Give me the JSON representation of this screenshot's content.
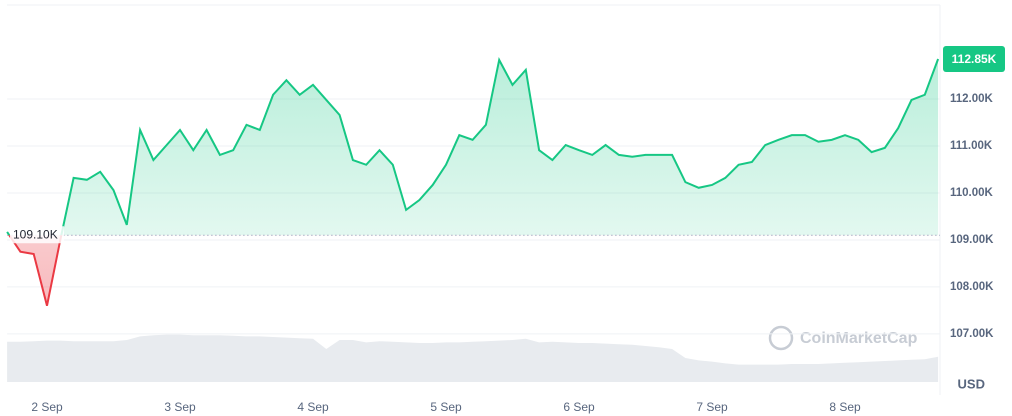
{
  "chart_data": {
    "type": "line",
    "categories": [
      null,
      null,
      null,
      "2 Sep",
      null,
      null,
      null,
      null,
      null,
      null,
      null,
      null,
      null,
      "3 Sep",
      null,
      null,
      null,
      null,
      null,
      null,
      null,
      null,
      null,
      "4 Sep",
      null,
      null,
      null,
      null,
      null,
      null,
      null,
      null,
      null,
      "5 Sep",
      null,
      null,
      null,
      null,
      null,
      null,
      null,
      null,
      null,
      "6 Sep",
      null,
      null,
      null,
      null,
      null,
      null,
      null,
      null,
      null,
      "7 Sep",
      null,
      null,
      null,
      null,
      null,
      null,
      null,
      null,
      null,
      "8 Sep",
      null,
      null,
      null,
      null,
      null,
      null,
      null
    ],
    "values": [
      109.17,
      108.75,
      108.7,
      107.6,
      109.0,
      110.32,
      110.28,
      110.45,
      110.06,
      109.32,
      111.34,
      110.7,
      111.02,
      111.34,
      110.91,
      111.34,
      110.81,
      110.91,
      111.45,
      111.34,
      112.09,
      112.4,
      112.09,
      112.3,
      111.98,
      111.66,
      110.7,
      110.6,
      110.91,
      110.6,
      109.64,
      109.85,
      110.17,
      110.6,
      111.23,
      111.13,
      111.45,
      112.83,
      112.3,
      112.62,
      110.91,
      110.7,
      111.02,
      110.91,
      110.81,
      111.02,
      110.81,
      110.77,
      110.81,
      110.81,
      110.81,
      110.23,
      110.11,
      110.17,
      110.32,
      110.6,
      110.66,
      111.02,
      111.13,
      111.23,
      111.23,
      111.09,
      111.13,
      111.23,
      111.13,
      110.87,
      110.96,
      111.38,
      111.98,
      112.09,
      112.85
    ],
    "colors": {
      "up": "#16c784",
      "down": "#ea3943"
    },
    "baseline": 109.1,
    "baseline_label": "109.10K",
    "last_label": "112.85K",
    "ylim": [
      105.7,
      114.0
    ],
    "yticks": [
      {
        "value": 107,
        "label": "107.00K"
      },
      {
        "value": 108,
        "label": "108.00K"
      },
      {
        "value": 109,
        "label": "109.00K"
      },
      {
        "value": 110,
        "label": "110.00K"
      },
      {
        "value": 111,
        "label": "111.00K"
      },
      {
        "value": 112,
        "label": "112.00K"
      }
    ],
    "grid": true,
    "unit": "USD",
    "watermark": "CoinMarketCap",
    "volume": {
      "values": [
        67,
        67,
        68,
        69,
        69,
        68,
        68,
        68,
        68,
        70,
        76,
        78,
        79,
        79,
        78,
        78,
        78,
        77,
        76,
        76,
        75,
        74,
        73,
        72,
        55,
        70,
        70,
        66,
        68,
        67,
        66,
        65,
        65,
        66,
        66,
        67,
        68,
        69,
        70,
        72,
        66,
        67,
        66,
        65,
        65,
        64,
        63,
        62,
        60,
        58,
        55,
        40,
        36,
        34,
        31,
        29,
        29,
        29,
        29,
        30,
        30,
        30,
        31,
        32,
        33,
        34,
        35,
        36,
        37,
        38,
        42
      ],
      "ylim": [
        0,
        100
      ],
      "color": "#e8ebef"
    }
  }
}
